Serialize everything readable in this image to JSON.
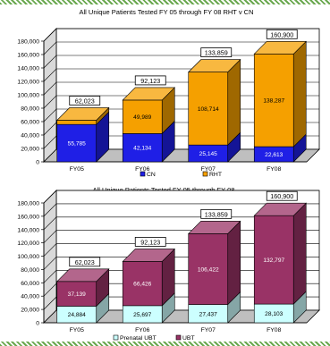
{
  "chart_data": [
    {
      "type": "bar",
      "stacked": true,
      "title": "All Unique Patients Tested    FY 05 through FY 08    RHT v CN",
      "categories": [
        "FY05",
        "FY06",
        "FY07",
        "FY08"
      ],
      "series": [
        {
          "name": "CN",
          "values": [
            55785,
            42134,
            25145,
            22613
          ],
          "color": "#1f1fe6",
          "labels": [
            "55,785",
            "42,134",
            "25,145",
            "22,613"
          ]
        },
        {
          "name": "RHT",
          "values": [
            6238,
            49989,
            108714,
            138287
          ],
          "color": "#f5a000",
          "labels": [
            "",
            "49,989",
            "108,714",
            "138,287"
          ]
        }
      ],
      "totals": [
        "62,023",
        "92,123",
        "133,859",
        "160,900"
      ],
      "ylim": [
        0,
        180000
      ],
      "yticks": [
        "0",
        "20,000",
        "40,000",
        "60,000",
        "80,000",
        "100,000",
        "120,000",
        "140,000",
        "160,000",
        "180,000"
      ],
      "grid": true,
      "legend_position": "bottom"
    },
    {
      "type": "bar",
      "stacked": true,
      "title": "All Unique Patients Tested    FY 05 through FY 08",
      "categories": [
        "FY05",
        "FY06",
        "FY07",
        "FY08"
      ],
      "series": [
        {
          "name": "Prenatal UBT",
          "values": [
            24884,
            25697,
            27437,
            28103
          ],
          "color": "#ccffff",
          "labels": [
            "24,884",
            "25,697",
            "27,437",
            "28,103"
          ]
        },
        {
          "name": "UBT",
          "values": [
            37139,
            66426,
            106422,
            132797
          ],
          "color": "#993366",
          "labels": [
            "37,139",
            "66,426",
            "106,422",
            "132,797"
          ]
        }
      ],
      "totals": [
        "62,023",
        "92,123",
        "133,859",
        "160,900"
      ],
      "ylim": [
        0,
        180000
      ],
      "yticks": [
        "0",
        "20,000",
        "40,000",
        "60,000",
        "80,000",
        "100,000",
        "120,000",
        "140,000",
        "160,000",
        "180,000"
      ],
      "grid": true,
      "legend_position": "bottom"
    }
  ]
}
